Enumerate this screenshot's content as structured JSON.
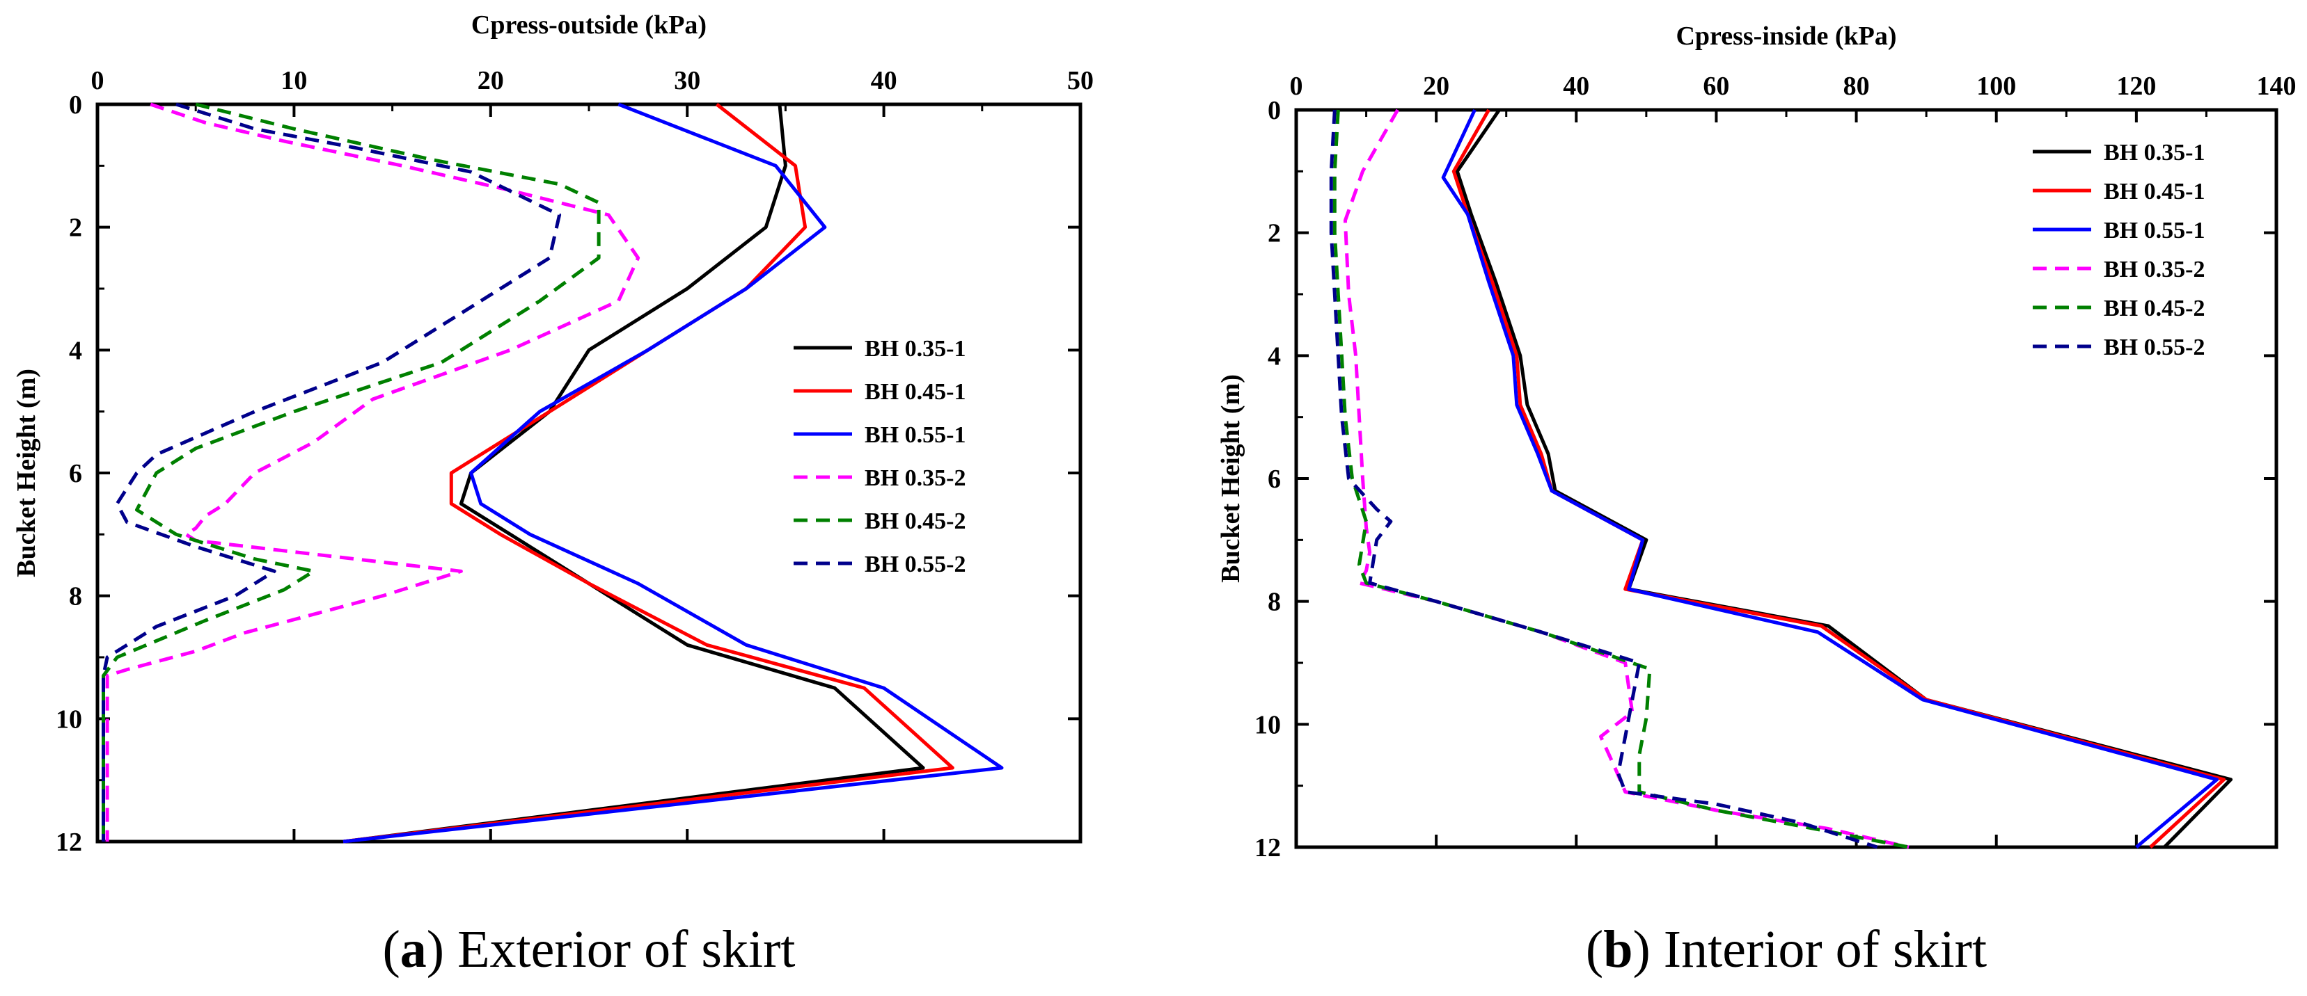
{
  "chart_data": [
    {
      "type": "line",
      "panel": "a",
      "caption_letter": "a",
      "caption_text": "Exterior of skirt",
      "xlabel": "Cpress-outside (kPa)",
      "ylabel": "Bucket Height (m)",
      "xlim": [
        0,
        50
      ],
      "ylim": [
        0,
        12
      ],
      "xticks": [
        0,
        10,
        20,
        30,
        40,
        50
      ],
      "yticks": [
        0,
        2,
        4,
        6,
        8,
        10,
        12
      ],
      "y_inverted": true,
      "x_axis_position": "top",
      "legend_position": "right",
      "series": [
        {
          "name": "BH 0.35-1",
          "color": "#000000",
          "dash": "solid",
          "x": [
            34.7,
            35.0,
            34.0,
            30.0,
            25.0,
            23.0,
            19.0,
            18.5,
            21.0,
            25.0,
            30.0,
            37.5,
            42.0,
            12.5
          ],
          "y": [
            0,
            1,
            2,
            3,
            4,
            5,
            6,
            6.5,
            7,
            7.8,
            8.8,
            9.5,
            10.8,
            12
          ]
        },
        {
          "name": "BH 0.45-1",
          "color": "#ff0000",
          "dash": "solid",
          "x": [
            31.5,
            35.5,
            36.0,
            33.0,
            28.0,
            23.0,
            18.0,
            18.0,
            20.5,
            25.0,
            31.0,
            39.0,
            43.5,
            12.5
          ],
          "y": [
            0,
            1,
            2,
            3,
            4,
            5,
            6,
            6.5,
            7,
            7.8,
            8.8,
            9.5,
            10.8,
            12
          ]
        },
        {
          "name": "BH 0.55-1",
          "color": "#0000ff",
          "dash": "solid",
          "x": [
            26.5,
            34.5,
            37.0,
            33.0,
            28.0,
            22.5,
            19.0,
            19.5,
            22.0,
            27.5,
            33.0,
            40.0,
            46.0,
            12.5
          ],
          "y": [
            0,
            1,
            2,
            3,
            4,
            5,
            6,
            6.5,
            7,
            7.8,
            8.8,
            9.5,
            10.8,
            12
          ]
        },
        {
          "name": "BH 0.35-2",
          "color": "#ff00ff",
          "dash": "dashed",
          "x": [
            2.7,
            5.5,
            9.5,
            15.5,
            21.0,
            26.0,
            27.5,
            26.5,
            21.0,
            14.0,
            11.0,
            8.0,
            6.5,
            5.5,
            5.0,
            4.5,
            5.0,
            18.5,
            14.5,
            7.5,
            5.0,
            1.5,
            0.5,
            0.5,
            0.5
          ],
          "y": [
            0,
            0.3,
            0.6,
            1.0,
            1.4,
            1.8,
            2.5,
            3.2,
            4.0,
            4.8,
            5.5,
            6.0,
            6.5,
            6.7,
            6.9,
            7.0,
            7.1,
            7.6,
            8.0,
            8.6,
            8.9,
            9.2,
            9.3,
            10,
            12
          ]
        },
        {
          "name": "BH 0.45-2",
          "color": "#008000",
          "dash": "dashed",
          "x": [
            5.0,
            10.0,
            17.0,
            23.5,
            25.5,
            25.5,
            22.5,
            17.5,
            10.0,
            5.0,
            3.0,
            2.0,
            4.0,
            8.0,
            11.0,
            9.5,
            5.5,
            1.0,
            0.3,
            0.3,
            0.3
          ],
          "y": [
            0,
            0.4,
            0.9,
            1.3,
            1.6,
            2.5,
            3.2,
            4.2,
            5.0,
            5.6,
            6.0,
            6.6,
            7.0,
            7.4,
            7.6,
            7.9,
            8.4,
            9.0,
            9.3,
            10,
            12
          ]
        },
        {
          "name": "BH 0.55-2",
          "color": "#00008b",
          "dash": "dashed",
          "x": [
            4.0,
            8.0,
            13.0,
            19.0,
            23.5,
            23.0,
            20.0,
            14.5,
            8.0,
            3.0,
            2.0,
            1.0,
            1.5,
            5.0,
            9.0,
            7.0,
            3.0,
            0.5,
            0.3,
            0.3
          ],
          "y": [
            0,
            0.4,
            0.7,
            1.1,
            1.8,
            2.5,
            3.1,
            4.2,
            5.0,
            5.7,
            6.0,
            6.5,
            6.8,
            7.2,
            7.6,
            8.0,
            8.5,
            9.0,
            9.3,
            12
          ]
        }
      ]
    },
    {
      "type": "line",
      "panel": "b",
      "caption_letter": "b",
      "caption_text": "Interior of skirt",
      "xlabel": "Cpress-inside (kPa)",
      "ylabel": "Bucket Height (m)",
      "xlim": [
        0,
        140
      ],
      "ylim": [
        0,
        12
      ],
      "xticks": [
        0,
        20,
        40,
        60,
        80,
        100,
        120,
        140
      ],
      "yticks": [
        0,
        2,
        4,
        6,
        8,
        10,
        12
      ],
      "y_inverted": true,
      "x_axis_position": "top",
      "legend_position": "top-right",
      "series": [
        {
          "name": "BH 0.35-1",
          "color": "#000000",
          "dash": "solid",
          "x": [
            29.0,
            23.0,
            25.0,
            28.5,
            32.0,
            33.0,
            36.0,
            37.0,
            50.0,
            47.5,
            76.0,
            90.0,
            133.5,
            124.0
          ],
          "y": [
            0,
            1.0,
            1.7,
            2.8,
            4.0,
            4.8,
            5.6,
            6.2,
            7.0,
            7.8,
            8.4,
            9.6,
            10.9,
            12
          ]
        },
        {
          "name": "BH 0.45-1",
          "color": "#ff0000",
          "dash": "solid",
          "x": [
            27.5,
            22.5,
            24.5,
            28.0,
            31.5,
            32.0,
            35.0,
            36.5,
            49.5,
            47.0,
            75.0,
            90.0,
            132.5,
            122.0
          ],
          "y": [
            0,
            1.0,
            1.7,
            2.8,
            4.0,
            4.8,
            5.6,
            6.2,
            7.0,
            7.8,
            8.4,
            9.6,
            10.9,
            12
          ]
        },
        {
          "name": "BH 0.55-1",
          "color": "#0000ff",
          "dash": "solid",
          "x": [
            25.5,
            21.0,
            24.5,
            27.5,
            31.0,
            31.5,
            34.5,
            36.5,
            49.5,
            47.5,
            74.5,
            89.5,
            131.5,
            120.0
          ],
          "y": [
            0,
            1.1,
            1.7,
            2.8,
            4.0,
            4.8,
            5.6,
            6.2,
            7.0,
            7.8,
            8.5,
            9.6,
            10.9,
            12
          ]
        },
        {
          "name": "BH 0.35-2",
          "color": "#ff00ff",
          "dash": "dashed",
          "x": [
            14.5,
            9.5,
            7.0,
            7.5,
            8.5,
            9.0,
            9.5,
            10.0,
            10.5,
            10.0,
            9.0,
            20.0,
            35.0,
            47.0,
            48.0,
            43.5,
            45.5,
            47.0,
            60.0,
            76.0,
            87.5
          ],
          "y": [
            0,
            1.0,
            1.8,
            3.0,
            4.0,
            5.0,
            6.0,
            6.8,
            7.2,
            7.5,
            7.7,
            8.0,
            8.5,
            9.0,
            9.8,
            10.2,
            10.7,
            11.1,
            11.4,
            11.7,
            12
          ]
        },
        {
          "name": "BH 0.45-2",
          "color": "#008000",
          "dash": "dashed",
          "x": [
            6.0,
            5.5,
            5.5,
            6.0,
            6.5,
            7.0,
            8.0,
            10.0,
            9.0,
            10.0,
            20.0,
            35.0,
            50.5,
            50.0,
            49.0,
            49.0,
            60.0,
            74.0,
            87.5
          ],
          "y": [
            0,
            1.0,
            2.0,
            3.0,
            4.0,
            5.0,
            6.0,
            6.7,
            7.4,
            7.7,
            8.0,
            8.5,
            9.1,
            9.9,
            10.5,
            11.1,
            11.4,
            11.7,
            12
          ]
        },
        {
          "name": "BH 0.55-2",
          "color": "#00008b",
          "dash": "dashed",
          "x": [
            5.5,
            5.0,
            5.0,
            5.5,
            6.0,
            6.5,
            7.5,
            11.5,
            13.5,
            11.5,
            10.5,
            20.0,
            35.0,
            49.0,
            47.0,
            46.0,
            47.0,
            60.0,
            72.0,
            83.0
          ],
          "y": [
            0,
            1.0,
            2.0,
            3.0,
            4.0,
            5.0,
            6.0,
            6.5,
            6.7,
            7.0,
            7.7,
            8.0,
            8.5,
            9.0,
            10.2,
            10.8,
            11.1,
            11.3,
            11.6,
            12
          ]
        }
      ]
    }
  ]
}
